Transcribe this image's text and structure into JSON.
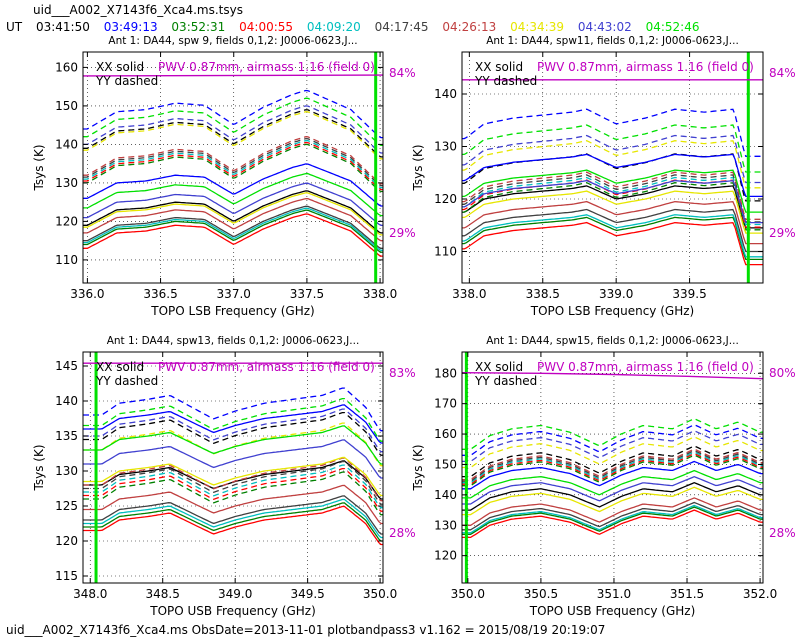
{
  "header": {
    "title": "uid___A002_X7143f6_Xca4.ms.tsys",
    "ut_label": "UT",
    "times": [
      {
        "text": "03:41:50",
        "color": "#000000"
      },
      {
        "text": "03:49:13",
        "color": "#0000ff"
      },
      {
        "text": "03:52:31",
        "color": "#008000"
      },
      {
        "text": "04:00:55",
        "color": "#ff0000"
      },
      {
        "text": "04:09:20",
        "color": "#00bfbf"
      },
      {
        "text": "04:17:45",
        "color": "#404040"
      },
      {
        "text": "04:26:13",
        "color": "#c04040"
      },
      {
        "text": "04:34:39",
        "color": "#e6e600"
      },
      {
        "text": "04:43:02",
        "color": "#4040d0"
      },
      {
        "text": "04:52:46",
        "color": "#00e000"
      }
    ]
  },
  "footer": "uid___A002_X7143f6_Xca4.ms  ObsDate=2013-11-01   plotbandpass3 v1.162 = 2015/08/19 20:19:07",
  "chart_data": [
    {
      "type": "line",
      "title": "Ant 1: DA44,  spw 9,  fields 0,1,2: J0006-0623,J...",
      "xlabel": "TOPO LSB Frequency (GHz)",
      "ylabel": "Tsys (K)",
      "xlim": [
        335.97,
        338.02
      ],
      "ylim": [
        104,
        164
      ],
      "xticks": [
        336.0,
        336.5,
        337.0,
        337.5,
        338.0
      ],
      "xtick_labels": [
        "336.0",
        "336.5",
        "337.0",
        "337.5",
        "338.0"
      ],
      "yticks": [
        110,
        120,
        130,
        140,
        150,
        160
      ],
      "legend_lines": [
        "XX solid",
        "YY dashed"
      ],
      "pwv_label": "PWV 0.87mm, airmass 1.16 (field 0)",
      "pwv_color": "#c000c0",
      "transmission_top": "84%",
      "transmission_bottom": "29%",
      "transmission_curve": {
        "x": [
          335.97,
          338.02
        ],
        "y": [
          157.8,
          158.0
        ]
      },
      "spike": {
        "x": 337.97,
        "color": "#00e000"
      },
      "x": [
        336.0,
        336.2,
        336.4,
        336.6,
        336.8,
        337.0,
        337.2,
        337.4,
        337.5,
        337.6,
        337.8,
        338.0
      ],
      "shape": [
        0.0,
        4.0,
        4.5,
        6.0,
        5.5,
        1.0,
        5.0,
        8.0,
        9.0,
        7.5,
        4.5,
        -2.0
      ],
      "series": [
        {
          "name": "03:41:50",
          "color": "#000000",
          "style": "solid",
          "base": 119
        },
        {
          "name": "03:41:50",
          "color": "#000000",
          "style": "dashed",
          "base": 139
        },
        {
          "name": "03:49:13",
          "color": "#0000ff",
          "style": "solid",
          "base": 126
        },
        {
          "name": "03:49:13",
          "color": "#0000ff",
          "style": "dashed",
          "base": 144
        },
        {
          "name": "03:52:31",
          "color": "#008000",
          "style": "solid",
          "base": 114
        },
        {
          "name": "03:52:31",
          "color": "#008000",
          "style": "dashed",
          "base": 130
        },
        {
          "name": "04:00:55",
          "color": "#ff0000",
          "style": "solid",
          "base": 113
        },
        {
          "name": "04:00:55",
          "color": "#ff0000",
          "style": "dashed",
          "base": 130.5
        },
        {
          "name": "04:09:20",
          "color": "#00bfbf",
          "style": "solid",
          "base": 114.5
        },
        {
          "name": "04:09:20",
          "color": "#00bfbf",
          "style": "dashed",
          "base": 131
        },
        {
          "name": "04:17:45",
          "color": "#404040",
          "style": "solid",
          "base": 115
        },
        {
          "name": "04:17:45",
          "color": "#404040",
          "style": "dashed",
          "base": 131.5
        },
        {
          "name": "04:26:13",
          "color": "#c04040",
          "style": "solid",
          "base": 117
        },
        {
          "name": "04:26:13",
          "color": "#c04040",
          "style": "dashed",
          "base": 132
        },
        {
          "name": "04:34:39",
          "color": "#e6e600",
          "style": "solid",
          "base": 118.5
        },
        {
          "name": "04:34:39",
          "color": "#e6e600",
          "style": "dashed",
          "base": 138.5
        },
        {
          "name": "04:43:02",
          "color": "#4040d0",
          "style": "solid",
          "base": 121
        },
        {
          "name": "04:43:02",
          "color": "#4040d0",
          "style": "dashed",
          "base": 140
        },
        {
          "name": "04:52:46",
          "color": "#00e000",
          "style": "solid",
          "base": 123.5
        },
        {
          "name": "04:52:46",
          "color": "#00e000",
          "style": "dashed",
          "base": 142
        }
      ]
    },
    {
      "type": "line",
      "title": "Ant 1: DA44,  spw11,  fields 0,1,2: J0006-0623,J...",
      "xlabel": "TOPO LSB Frequency (GHz)",
      "ylabel": "Tsys (K)",
      "xlim": [
        337.95,
        340.0
      ],
      "ylim": [
        104,
        148
      ],
      "xticks": [
        338.0,
        338.5,
        339.0,
        339.5
      ],
      "xtick_labels": [
        "338.0",
        "338.5",
        "339.0",
        "339.5"
      ],
      "yticks": [
        110,
        120,
        130,
        140
      ],
      "legend_lines": [
        "XX solid",
        "YY dashed"
      ],
      "pwv_label": "PWV 0.87mm, airmass 1.16 (field 0)",
      "pwv_color": "#c000c0",
      "transmission_top": "84%",
      "transmission_bottom": "29%",
      "transmission_curve": {
        "x": [
          337.95,
          340.0
        ],
        "y": [
          142.7,
          142.7
        ]
      },
      "spike": {
        "x": 339.9,
        "color": "#00e000"
      },
      "x": [
        337.97,
        338.1,
        338.3,
        338.5,
        338.7,
        338.8,
        339.0,
        339.2,
        339.4,
        339.6,
        339.8,
        339.88
      ],
      "shape": [
        0.0,
        2.5,
        3.5,
        4.0,
        4.5,
        5.0,
        2.5,
        3.5,
        5.0,
        4.5,
        5.0,
        -3.0
      ],
      "series": [
        {
          "name": "03:41:50",
          "color": "#000000",
          "style": "solid",
          "base": 117.5
        },
        {
          "name": "03:41:50",
          "color": "#000000",
          "style": "dashed",
          "base": 123
        },
        {
          "name": "03:49:13",
          "color": "#0000ff",
          "style": "solid",
          "base": 123.5
        },
        {
          "name": "03:49:13",
          "color": "#0000ff",
          "style": "dashed",
          "base": 131.5
        },
        {
          "name": "03:52:31",
          "color": "#008000",
          "style": "solid",
          "base": 111.5
        },
        {
          "name": "03:52:31",
          "color": "#008000",
          "style": "dashed",
          "base": 117.5
        },
        {
          "name": "04:00:55",
          "color": "#ff0000",
          "style": "solid",
          "base": 110.5
        },
        {
          "name": "04:00:55",
          "color": "#ff0000",
          "style": "dashed",
          "base": 118
        },
        {
          "name": "04:09:20",
          "color": "#00bfbf",
          "style": "solid",
          "base": 112
        },
        {
          "name": "04:09:20",
          "color": "#00bfbf",
          "style": "dashed",
          "base": 118.5
        },
        {
          "name": "04:17:45",
          "color": "#404040",
          "style": "solid",
          "base": 113
        },
        {
          "name": "04:17:45",
          "color": "#404040",
          "style": "dashed",
          "base": 119
        },
        {
          "name": "04:26:13",
          "color": "#c04040",
          "style": "solid",
          "base": 114.5
        },
        {
          "name": "04:26:13",
          "color": "#c04040",
          "style": "dashed",
          "base": 119.5
        },
        {
          "name": "04:34:39",
          "color": "#e6e600",
          "style": "solid",
          "base": 116.5
        },
        {
          "name": "04:34:39",
          "color": "#e6e600",
          "style": "dashed",
          "base": 125.5
        },
        {
          "name": "04:43:02",
          "color": "#4040d0",
          "style": "solid",
          "base": 118.5
        },
        {
          "name": "04:43:02",
          "color": "#4040d0",
          "style": "dashed",
          "base": 126.5
        },
        {
          "name": "04:52:46",
          "color": "#00e000",
          "style": "solid",
          "base": 120.5
        },
        {
          "name": "04:52:46",
          "color": "#00e000",
          "style": "dashed",
          "base": 128.5
        }
      ]
    },
    {
      "type": "line",
      "title": "Ant 1: DA44,  spw13,  fields 0,1,2: J0006-0623,J...",
      "xlabel": "TOPO USB Frequency (GHz)",
      "ylabel": "Tsys (K)",
      "xlim": [
        347.95,
        350.02
      ],
      "ylim": [
        114,
        147
      ],
      "xticks": [
        348.0,
        348.5,
        349.0,
        349.5,
        350.0
      ],
      "xtick_labels": [
        "348.0",
        "348.5",
        "349.0",
        "349.5",
        "350.0"
      ],
      "yticks": [
        115,
        120,
        125,
        130,
        135,
        140,
        145
      ],
      "legend_lines": [
        "XX solid",
        "YY dashed"
      ],
      "pwv_label": "PWV 0.87mm, airmass 1.16 (field 0)",
      "pwv_color": "#c000c0",
      "transmission_top": "83%",
      "transmission_bottom": "28%",
      "transmission_curve": {
        "x": [
          347.95,
          350.02
        ],
        "y": [
          145.4,
          145.4
        ]
      },
      "spike": {
        "x": 348.04,
        "color": "#00e000"
      },
      "x": [
        348.08,
        348.2,
        348.4,
        348.55,
        348.7,
        348.85,
        349.0,
        349.2,
        349.4,
        349.6,
        349.75,
        349.9,
        350.0
      ],
      "shape": [
        0.0,
        1.5,
        2.0,
        2.5,
        1.0,
        -0.5,
        0.5,
        1.5,
        2.0,
        2.5,
        3.5,
        1.0,
        -2.0
      ],
      "series": [
        {
          "name": "03:41:50",
          "color": "#000000",
          "style": "solid",
          "base": 128
        },
        {
          "name": "03:41:50",
          "color": "#000000",
          "style": "dashed",
          "base": 134.5
        },
        {
          "name": "03:49:13",
          "color": "#0000ff",
          "style": "solid",
          "base": 136
        },
        {
          "name": "03:49:13",
          "color": "#0000ff",
          "style": "dashed",
          "base": 138
        },
        {
          "name": "03:52:31",
          "color": "#008000",
          "style": "solid",
          "base": 122
        },
        {
          "name": "03:52:31",
          "color": "#008000",
          "style": "dashed",
          "base": 126
        },
        {
          "name": "04:00:55",
          "color": "#ff0000",
          "style": "solid",
          "base": 121.5
        },
        {
          "name": "04:00:55",
          "color": "#ff0000",
          "style": "dashed",
          "base": 126.5
        },
        {
          "name": "04:09:20",
          "color": "#00bfbf",
          "style": "solid",
          "base": 122.5
        },
        {
          "name": "04:09:20",
          "color": "#00bfbf",
          "style": "dashed",
          "base": 127
        },
        {
          "name": "04:17:45",
          "color": "#404040",
          "style": "solid",
          "base": 123
        },
        {
          "name": "04:17:45",
          "color": "#404040",
          "style": "dashed",
          "base": 127.5
        },
        {
          "name": "04:26:13",
          "color": "#c04040",
          "style": "solid",
          "base": 124.5
        },
        {
          "name": "04:26:13",
          "color": "#c04040",
          "style": "dashed",
          "base": 128
        },
        {
          "name": "04:34:39",
          "color": "#e6e600",
          "style": "solid",
          "base": 128.5
        },
        {
          "name": "04:34:39",
          "color": "#e6e600",
          "style": "dashed",
          "base": 133
        },
        {
          "name": "04:43:02",
          "color": "#4040d0",
          "style": "solid",
          "base": 131
        },
        {
          "name": "04:43:02",
          "color": "#4040d0",
          "style": "dashed",
          "base": 135
        },
        {
          "name": "04:52:46",
          "color": "#00e000",
          "style": "solid",
          "base": 133
        },
        {
          "name": "04:52:46",
          "color": "#00e000",
          "style": "dashed",
          "base": 136.5
        }
      ]
    },
    {
      "type": "line",
      "title": "Ant 1: DA44,  spw15,  fields 0,1,2: J0006-0623,J...",
      "xlabel": "TOPO USB Frequency (GHz)",
      "ylabel": "Tsys (K)",
      "xlim": [
        349.96,
        352.02
      ],
      "ylim": [
        111,
        187
      ],
      "xticks": [
        350.0,
        350.5,
        351.0,
        351.5,
        352.0
      ],
      "xtick_labels": [
        "350.0",
        "350.5",
        "351.0",
        "351.5",
        "352.0"
      ],
      "yticks": [
        120,
        130,
        140,
        150,
        160,
        170,
        180
      ],
      "legend_lines": [
        "XX solid",
        "YY dashed"
      ],
      "pwv_label": "PWV 0.87mm, airmass 1.16 (field 0)",
      "pwv_color": "#c000c0",
      "transmission_top": "80%",
      "transmission_bottom": "28%",
      "transmission_curve": {
        "x": [
          349.96,
          350.5,
          351.0,
          351.5,
          352.02
        ],
        "y": [
          180.2,
          180.0,
          179.6,
          179.0,
          178.2
        ]
      },
      "spike": {
        "x": 349.99,
        "color": "#00e000"
      },
      "x": [
        350.02,
        350.15,
        350.3,
        350.5,
        350.7,
        350.9,
        351.05,
        351.2,
        351.4,
        351.55,
        351.7,
        351.85,
        352.0
      ],
      "shape": [
        0.0,
        4.0,
        6.0,
        7.0,
        5.0,
        1.0,
        4.5,
        7.0,
        6.0,
        9.0,
        6.0,
        8.0,
        5.0
      ],
      "series": [
        {
          "name": "03:41:50",
          "color": "#000000",
          "style": "solid",
          "base": 135
        },
        {
          "name": "03:41:50",
          "color": "#000000",
          "style": "dashed",
          "base": 146
        },
        {
          "name": "03:49:13",
          "color": "#0000ff",
          "style": "solid",
          "base": 142
        },
        {
          "name": "03:49:13",
          "color": "#0000ff",
          "style": "dashed",
          "base": 153
        },
        {
          "name": "03:52:31",
          "color": "#008000",
          "style": "solid",
          "base": 127
        },
        {
          "name": "03:52:31",
          "color": "#008000",
          "style": "dashed",
          "base": 143
        },
        {
          "name": "04:00:55",
          "color": "#ff0000",
          "style": "solid",
          "base": 126
        },
        {
          "name": "04:00:55",
          "color": "#ff0000",
          "style": "dashed",
          "base": 143.5
        },
        {
          "name": "04:09:20",
          "color": "#00bfbf",
          "style": "solid",
          "base": 127.5
        },
        {
          "name": "04:09:20",
          "color": "#00bfbf",
          "style": "dashed",
          "base": 144
        },
        {
          "name": "04:17:45",
          "color": "#404040",
          "style": "solid",
          "base": 128.5
        },
        {
          "name": "04:17:45",
          "color": "#404040",
          "style": "dashed",
          "base": 144.5
        },
        {
          "name": "04:26:13",
          "color": "#c04040",
          "style": "solid",
          "base": 130
        },
        {
          "name": "04:26:13",
          "color": "#c04040",
          "style": "dashed",
          "base": 145
        },
        {
          "name": "04:34:39",
          "color": "#e6e600",
          "style": "solid",
          "base": 133.5
        },
        {
          "name": "04:34:39",
          "color": "#e6e600",
          "style": "dashed",
          "base": 149
        },
        {
          "name": "04:43:02",
          "color": "#4040d0",
          "style": "solid",
          "base": 137
        },
        {
          "name": "04:43:02",
          "color": "#4040d0",
          "style": "dashed",
          "base": 151
        },
        {
          "name": "04:52:46",
          "color": "#00e000",
          "style": "solid",
          "base": 139
        },
        {
          "name": "04:52:46",
          "color": "#00e000",
          "style": "dashed",
          "base": 155
        }
      ]
    }
  ]
}
